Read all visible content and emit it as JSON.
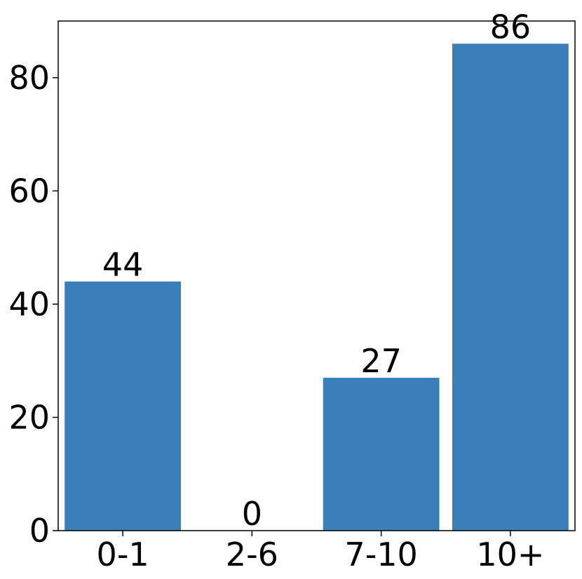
{
  "chart_data": {
    "type": "bar",
    "categories": [
      "0-1",
      "2-6",
      "7-10",
      "10+"
    ],
    "values": [
      44,
      0,
      27,
      86
    ],
    "data_labels": [
      "44",
      "0",
      "27",
      "86"
    ],
    "title": "",
    "xlabel": "",
    "ylabel": "",
    "ylim": [
      0,
      90
    ],
    "yticks": [
      0,
      20,
      40,
      60,
      80
    ],
    "ytick_labels": [
      "0",
      "20",
      "40",
      "60",
      "80"
    ],
    "grid": false,
    "bar_color": "#3a7fb8"
  }
}
